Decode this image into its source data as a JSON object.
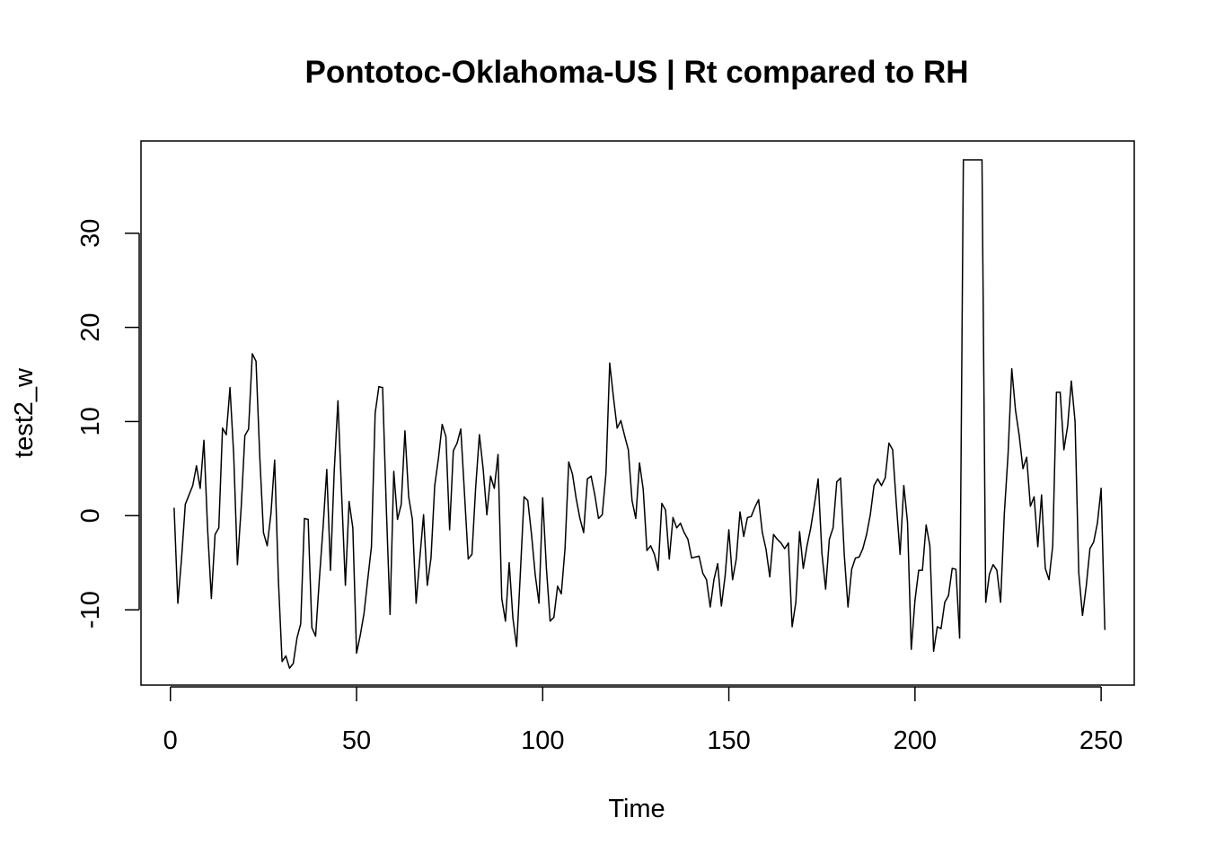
{
  "chart_data": {
    "type": "line",
    "title": "Pontotoc-Oklahoma-US | Rt compared to RH",
    "xlabel": "Time",
    "ylabel": "test2_w",
    "xlim": [
      -7.9,
      258.9
    ],
    "ylim": [
      -18.0,
      39.8
    ],
    "x_ticks": [
      0,
      50,
      100,
      150,
      200,
      250
    ],
    "y_ticks": [
      -10,
      0,
      10,
      20,
      30
    ],
    "grid": false,
    "legend": "none",
    "series": [
      {
        "x_start": 1,
        "x_step": 1,
        "values": [
          0.8,
          -9.3,
          -4.5,
          1.2,
          2.2,
          3.2,
          5.3,
          2.9,
          8.0,
          -1.5,
          -8.8,
          -2.0,
          -1.3,
          9.3,
          8.6,
          13.6,
          6.5,
          -5.2,
          0.8,
          8.5,
          9.2,
          17.2,
          16.4,
          6.3,
          -1.8,
          -3.2,
          0.2,
          5.9,
          -6.8,
          -15.5,
          -14.9,
          -16.2,
          -15.7,
          -13.0,
          -11.5,
          -0.3,
          -0.4,
          -11.9,
          -12.8,
          -6.8,
          -1.3,
          4.9,
          -5.8,
          4.7,
          12.2,
          2.2,
          -7.4,
          1.5,
          -1.3,
          -14.6,
          -12.7,
          -10.4,
          -6.8,
          -3.3,
          10.9,
          13.7,
          13.6,
          0.8,
          -10.5,
          4.7,
          -0.4,
          1.2,
          9.0,
          2.0,
          -0.4,
          -9.3,
          -4.5,
          0.1,
          -7.4,
          -4.5,
          3.2,
          6.1,
          9.7,
          8.4,
          -1.5,
          6.9,
          7.7,
          9.2,
          2.3,
          -4.6,
          -4.1,
          3.0,
          8.6,
          5.0,
          0.1,
          4.2,
          2.9,
          6.5,
          -8.8,
          -11.2,
          -5.0,
          -10.9,
          -13.9,
          -6.1,
          2.0,
          1.6,
          -2.0,
          -6.3,
          -9.3,
          1.9,
          -5.6,
          -11.2,
          -10.8,
          -7.5,
          -8.3,
          -3.5,
          5.7,
          4.4,
          1.8,
          -0.3,
          -1.8,
          3.9,
          4.2,
          2.2,
          -0.3,
          0.1,
          4.5,
          16.2,
          12.6,
          9.3,
          10.1,
          8.5,
          7.0,
          1.6,
          -0.3,
          5.6,
          2.8,
          -3.7,
          -3.2,
          -4.1,
          -5.8,
          1.3,
          0.6,
          -4.6,
          -0.2,
          -1.3,
          -0.8,
          -1.8,
          -2.5,
          -4.5,
          -4.4,
          -4.3,
          -6.1,
          -6.8,
          -9.7,
          -6.8,
          -5.1,
          -9.6,
          -6.4,
          -1.5,
          -6.8,
          -4.6,
          0.4,
          -2.2,
          -0.2,
          -0.1,
          0.9,
          1.7,
          -1.8,
          -3.6,
          -6.5,
          -2.0,
          -2.5,
          -2.9,
          -3.5,
          -2.9,
          -11.8,
          -9.2,
          -1.7,
          -5.6,
          -3.2,
          -1.3,
          1.2,
          3.9,
          -4.0,
          -7.8,
          -2.5,
          -1.3,
          3.6,
          4.0,
          -4.1,
          -9.7,
          -5.7,
          -4.5,
          -4.4,
          -3.5,
          -2.0,
          0.1,
          3.2,
          3.9,
          3.2,
          4.0,
          7.7,
          7.0,
          1.2,
          -4.1,
          3.2,
          -0.7,
          -14.2,
          -9.0,
          -5.8,
          -5.8,
          -1.0,
          -3.2,
          -14.4,
          -11.8,
          -12.0,
          -9.2,
          -8.5,
          -5.6,
          -5.7,
          -13.0,
          37.8,
          37.8,
          37.8,
          37.8,
          37.8,
          37.8,
          -9.2,
          -6.2,
          -5.2,
          -5.8,
          -9.2,
          0.2,
          6.5,
          15.6,
          11.2,
          8.5,
          5.0,
          6.2,
          1.0,
          2.0,
          -3.3,
          2.2,
          -5.6,
          -6.8,
          -3.2,
          13.1,
          13.1,
          7.0,
          9.5,
          14.3,
          10.0,
          -6.1,
          -10.6,
          -7.5,
          -3.5,
          -2.8,
          -0.8,
          2.9,
          -12.1
        ]
      }
    ]
  }
}
